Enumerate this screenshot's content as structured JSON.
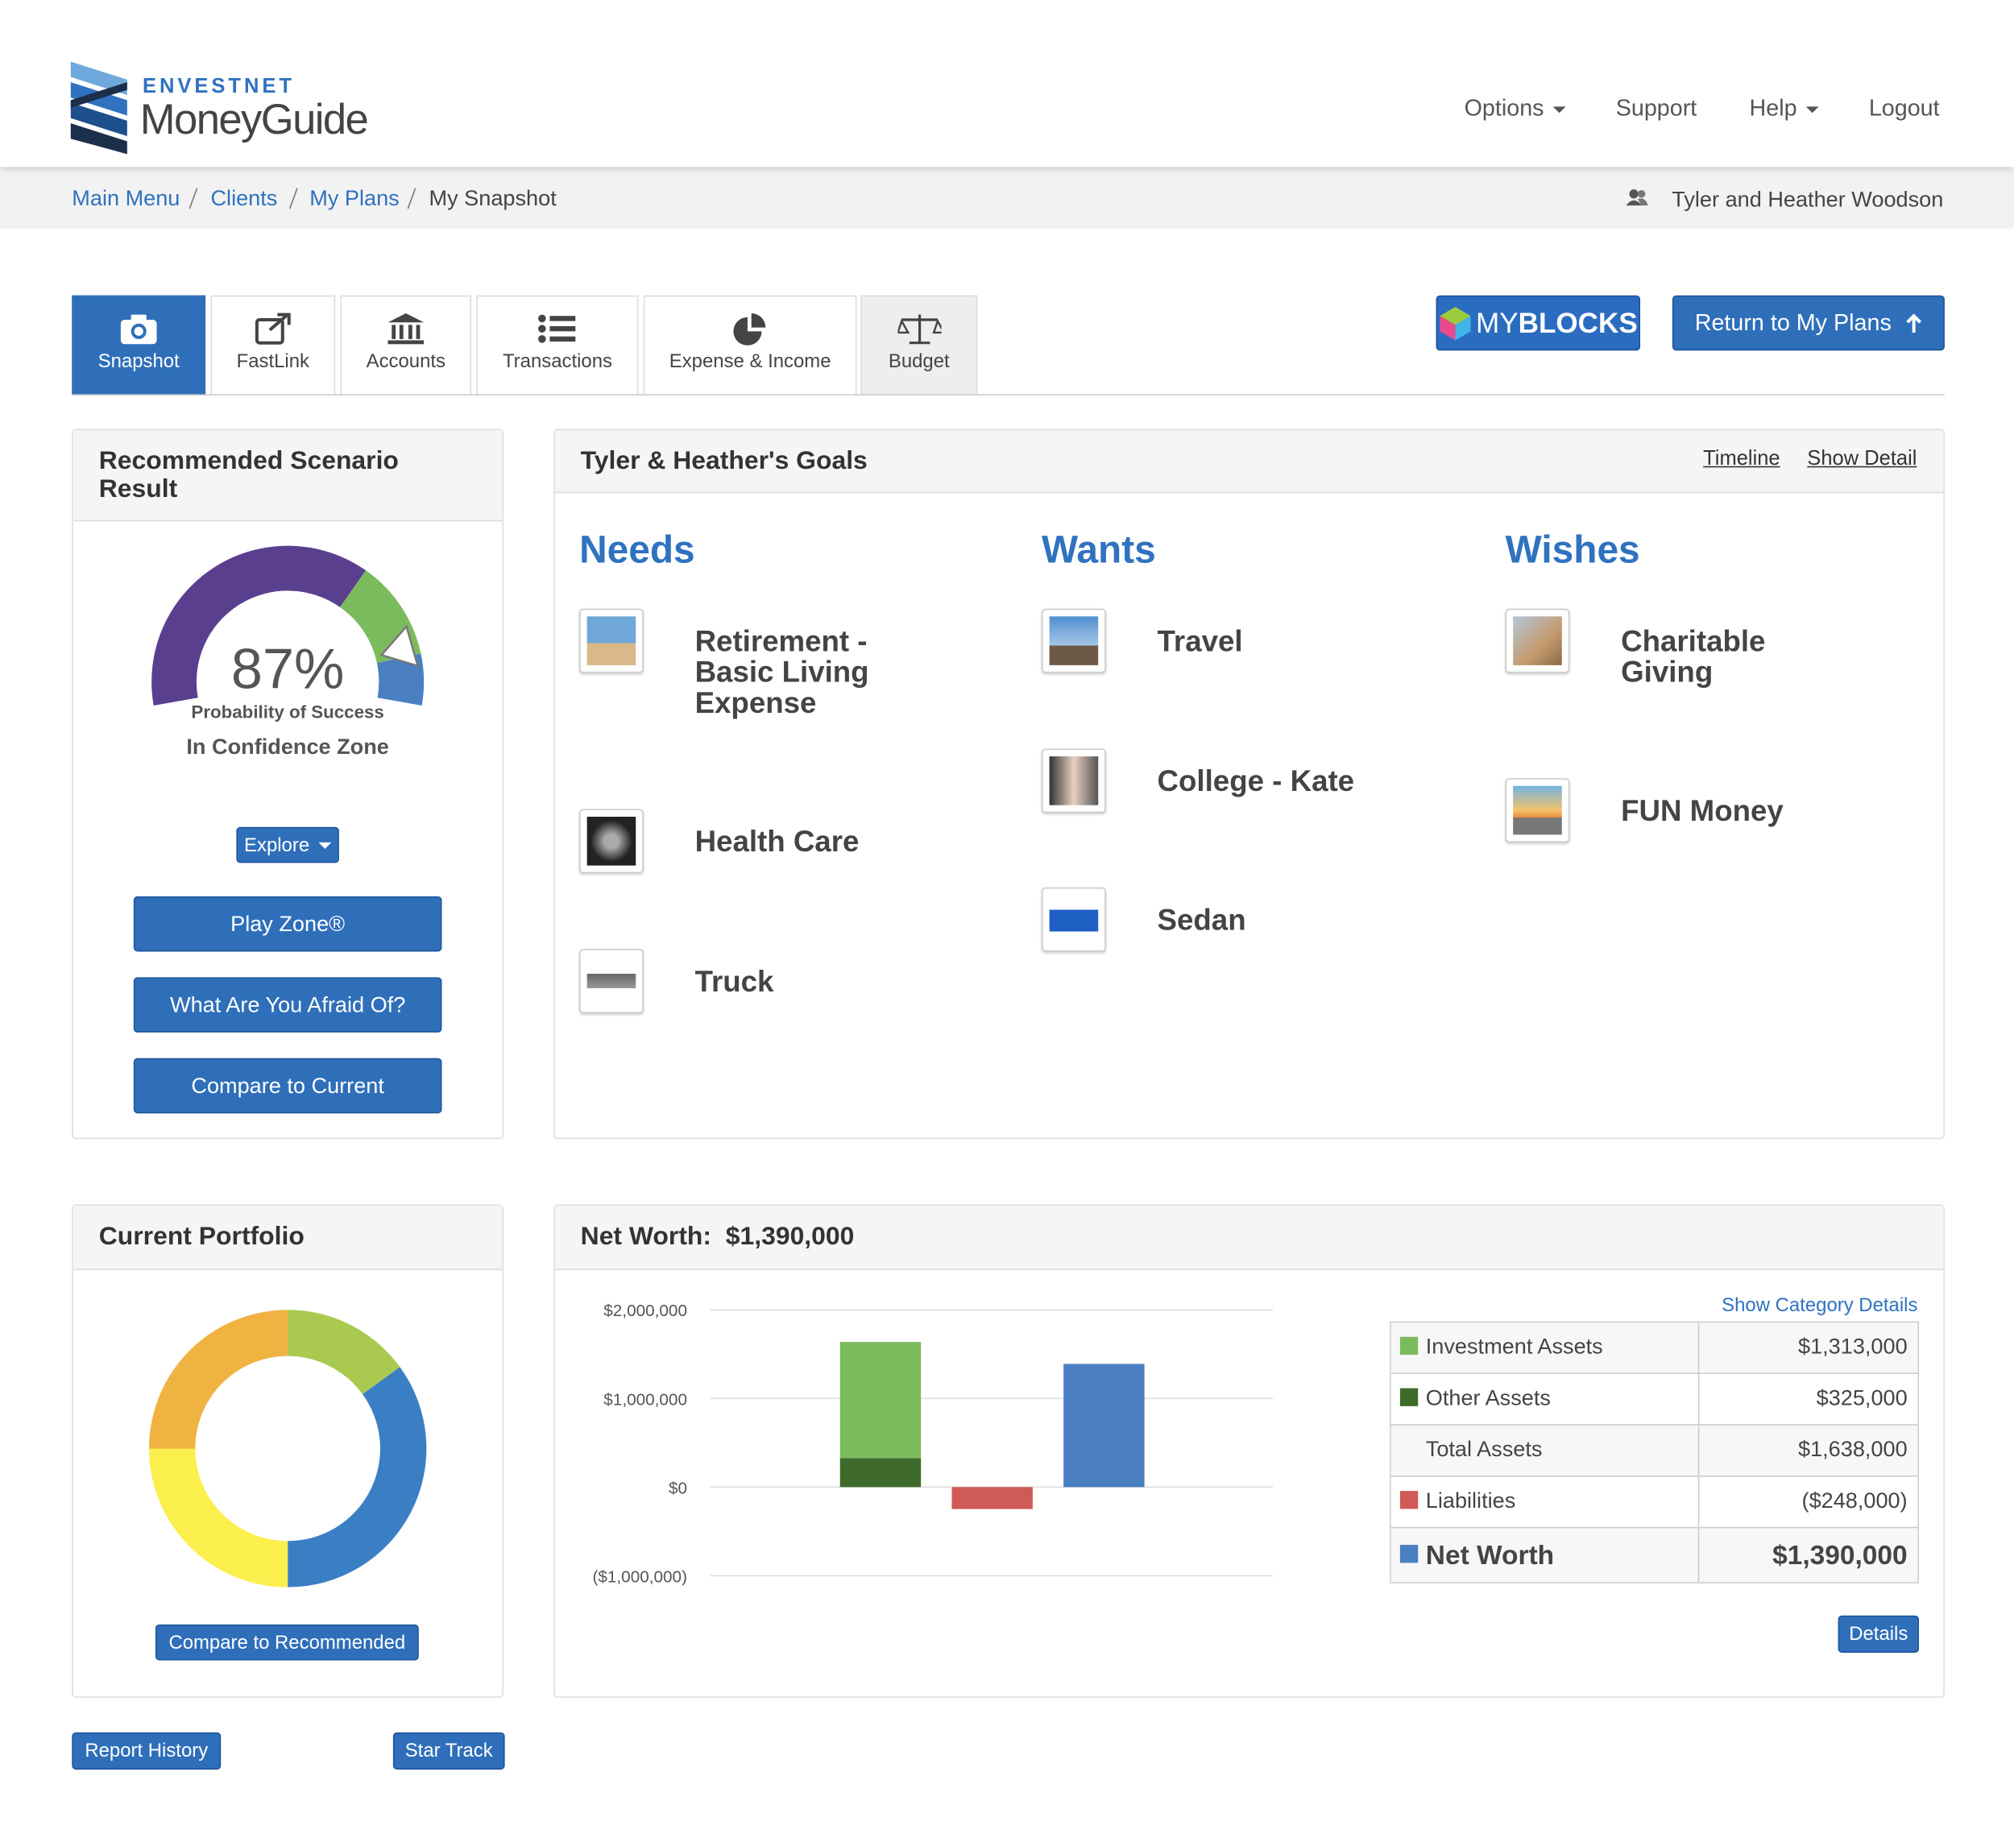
{
  "header": {
    "brand_top": "ENVESTNET",
    "brand": "MoneyGuide",
    "nav": [
      "Options",
      "Support",
      "Help",
      "Logout"
    ]
  },
  "breadcrumbs": [
    "Main Menu",
    "Clients",
    "My Plans",
    "My Snapshot"
  ],
  "client": "Tyler and Heather Woodson",
  "tabs": [
    "Snapshot",
    "FastLink",
    "Accounts",
    "Transactions",
    "Expense & Income",
    "Budget"
  ],
  "actions": {
    "myblocks_prefix": "MY",
    "myblocks": "BLOCKS",
    "return": "Return to My Plans"
  },
  "scenario": {
    "title": "Recommended Scenario Result",
    "probability": {
      "value": 87,
      "label": "87%"
    },
    "caption": "Probability of Success",
    "zone": "In Confidence Zone",
    "explore": "Explore",
    "buttons": [
      "Play Zone®",
      "What Are You Afraid Of?",
      "Compare to Current"
    ]
  },
  "goals": {
    "title": "Tyler & Heather's Goals",
    "links": [
      "Timeline",
      "Show Detail"
    ],
    "groups": [
      {
        "name": "Needs",
        "items": [
          "Retirement - Basic Living Expense",
          "Health Care",
          "Truck"
        ]
      },
      {
        "name": "Wants",
        "items": [
          "Travel",
          "College - Kate",
          "Sedan"
        ]
      },
      {
        "name": "Wishes",
        "items": [
          "Charitable Giving",
          "FUN Money"
        ]
      }
    ]
  },
  "portfolio": {
    "title": "Current Portfolio",
    "button": "Compare to Recommended"
  },
  "net_worth": {
    "title": "Net Worth:",
    "link": "Show Category Details",
    "button": "Details",
    "total_assets": {
      "name": "Total Assets",
      "value": 1638000,
      "label": "$1,638,000"
    }
  },
  "chart_data": [
    {
      "type": "bar",
      "categories": [
        null,
        null,
        null
      ],
      "ylim": [
        -1000000,
        2000000
      ],
      "yticks": [
        {
          "value": 2000000,
          "label": "$2,000,000"
        },
        {
          "value": 1000000,
          "label": "$1,000,000"
        },
        {
          "value": 0,
          "label": "$0"
        },
        {
          "value": -1000000,
          "label": "($1,000,000)"
        }
      ],
      "grid": true,
      "series": [
        {
          "name": "Investment Assets",
          "color": "#7cba5e",
          "values": [
            1313000,
            null,
            null
          ],
          "value_labels": [
            "$1,313,000",
            null,
            null
          ]
        },
        {
          "name": "Other Assets",
          "color": "#3e6b2b",
          "values": [
            325000,
            null,
            null
          ],
          "value_labels": [
            "$325,000",
            null,
            null
          ]
        },
        {
          "name": "Liabilities",
          "color": "#d05a55",
          "values": [
            null,
            -248000,
            null
          ],
          "value_labels": [
            null,
            "($248,000)",
            null
          ]
        },
        {
          "name": "Net Worth",
          "color": "#4a7fc1",
          "values": [
            null,
            null,
            1390000
          ],
          "value_labels": [
            null,
            null,
            "$1,390,000"
          ]
        }
      ]
    },
    {
      "type": "pie",
      "values": [
        15,
        35,
        25,
        25
      ],
      "colors": [
        "#a9c94f",
        "#3a7fc4",
        "#fbef4e",
        "#f0b341"
      ]
    }
  ],
  "footer_buttons": [
    "Report History",
    "Star Track"
  ]
}
